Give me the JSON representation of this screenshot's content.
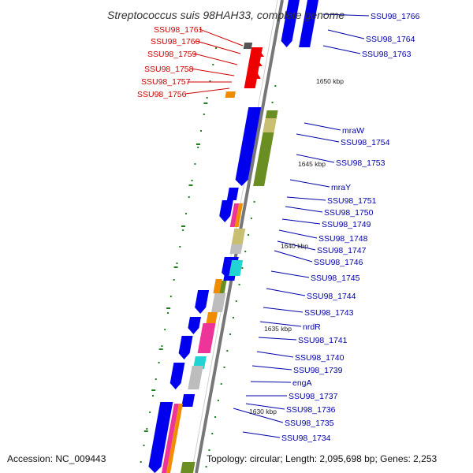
{
  "header": {
    "title": "Streptococcus suis 98HAH33, complete genome"
  },
  "footer": {
    "accession": "Accession: NC_009443",
    "summary": "Topology: circular; Length: 2,095,698 bp; Genes: 2,253"
  },
  "colors": {
    "cds": "#0000ee",
    "highlight": "#ee0000",
    "label_right": "#0000aa",
    "label_left": "#cc0000",
    "backbone": "#777777",
    "tick": "#1f7f1f",
    "olive": "#6b8e23",
    "khaki": "#c8bf73",
    "gray": "#bdbdbd",
    "cyan": "#22d3d3",
    "pink": "#ee3399",
    "orange": "#f08c00"
  },
  "scale_marks": [
    {
      "label": "1650 kbp",
      "pos_kbp": 1650
    },
    {
      "label": "1645 kbp",
      "pos_kbp": 1645
    },
    {
      "label": "1640 kbp",
      "pos_kbp": 1640
    },
    {
      "label": "1635 kbp",
      "pos_kbp": 1635
    },
    {
      "label": "1630 kbp",
      "pos_kbp": 1630
    }
  ],
  "left_labels": [
    "SSU98_1761",
    "SSU98_1760",
    "SSU98_1759",
    "SSU98_1758",
    "SSU98_1757",
    "SSU98_1756"
  ],
  "right_labels": [
    "SSU98_1766",
    "SSU98_1764",
    "SSU98_1763",
    "mraW",
    "SSU98_1754",
    "SSU98_1753",
    "mraY",
    "SSU98_1751",
    "SSU98_1750",
    "SSU98_1749",
    "SSU98_1748",
    "SSU98_1747",
    "SSU98_1746",
    "SSU98_1745",
    "SSU98_1744",
    "SSU98_1743",
    "nrdR",
    "SSU98_1741",
    "SSU98_1740",
    "SSU98_1739",
    "engA",
    "SSU98_1737",
    "SSU98_1736",
    "SSU98_1735",
    "SSU98_1734"
  ]
}
